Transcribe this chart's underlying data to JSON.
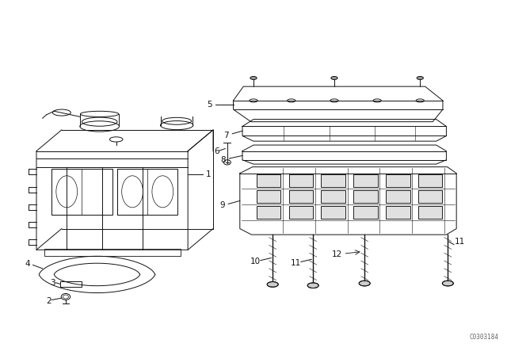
{
  "bg_color": "#ffffff",
  "line_color": "#111111",
  "fig_width": 6.4,
  "fig_height": 4.48,
  "dpi": 100,
  "watermark": "C0303184"
}
